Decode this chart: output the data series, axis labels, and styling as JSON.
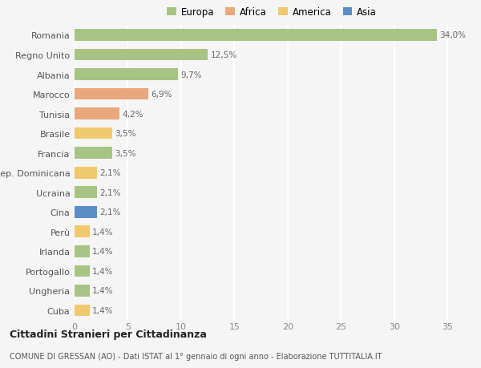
{
  "countries": [
    "Romania",
    "Regno Unito",
    "Albania",
    "Marocco",
    "Tunisia",
    "Brasile",
    "Francia",
    "Rep. Dominicana",
    "Ucraina",
    "Cina",
    "Perù",
    "Irlanda",
    "Portogallo",
    "Ungheria",
    "Cuba"
  ],
  "values": [
    34.0,
    12.5,
    9.7,
    6.9,
    4.2,
    3.5,
    3.5,
    2.1,
    2.1,
    2.1,
    1.4,
    1.4,
    1.4,
    1.4,
    1.4
  ],
  "labels": [
    "34,0%",
    "12,5%",
    "9,7%",
    "6,9%",
    "4,2%",
    "3,5%",
    "3,5%",
    "2,1%",
    "2,1%",
    "2,1%",
    "1,4%",
    "1,4%",
    "1,4%",
    "1,4%",
    "1,4%"
  ],
  "continents": [
    "Europa",
    "Europa",
    "Europa",
    "Africa",
    "Africa",
    "America",
    "Europa",
    "America",
    "Europa",
    "Asia",
    "America",
    "Europa",
    "Europa",
    "Europa",
    "America"
  ],
  "colors": {
    "Europa": "#a8c484",
    "Africa": "#e8a87c",
    "America": "#f0c96e",
    "Asia": "#5b8ec4"
  },
  "xlim": [
    0,
    37
  ],
  "xticks": [
    0,
    5,
    10,
    15,
    20,
    25,
    30,
    35
  ],
  "background_color": "#f5f5f5",
  "title": "Cittadini Stranieri per Cittadinanza",
  "subtitle": "COMUNE DI GRESSAN (AO) - Dati ISTAT al 1° gennaio di ogni anno - Elaborazione TUTTITALIA.IT",
  "grid_color": "#ffffff",
  "bar_height": 0.6,
  "legend_order": [
    "Europa",
    "Africa",
    "America",
    "Asia"
  ]
}
